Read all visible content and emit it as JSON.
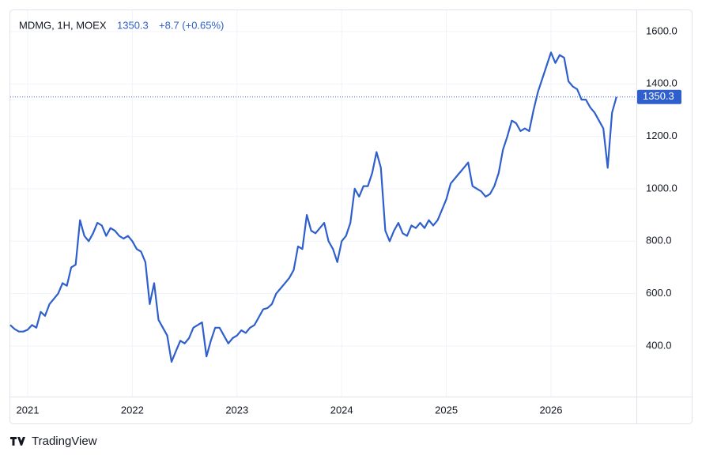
{
  "chart_data": {
    "type": "line",
    "title": "MDMG, 1H, MOEX",
    "quote": "1350.3",
    "change": "+8.7 (+0.65%)",
    "source": "TradingView",
    "categories": [
      null,
      null,
      null,
      null,
      "2021",
      null,
      null,
      null,
      null,
      null,
      null,
      null,
      null,
      null,
      null,
      null,
      null,
      null,
      null,
      null,
      null,
      null,
      null,
      null,
      null,
      null,
      null,
      null,
      "2022",
      null,
      null,
      null,
      null,
      null,
      null,
      null,
      null,
      null,
      null,
      null,
      null,
      null,
      null,
      null,
      null,
      null,
      null,
      null,
      null,
      null,
      null,
      null,
      "2023",
      null,
      null,
      null,
      null,
      null,
      null,
      null,
      null,
      null,
      null,
      null,
      null,
      null,
      null,
      null,
      null,
      null,
      null,
      null,
      null,
      null,
      null,
      null,
      "2024",
      null,
      null,
      null,
      null,
      null,
      null,
      null,
      null,
      null,
      null,
      null,
      null,
      null,
      null,
      null,
      null,
      null,
      null,
      null,
      null,
      null,
      null,
      null,
      "2025",
      null,
      null,
      null,
      null,
      null,
      null,
      null,
      null,
      null,
      null,
      null,
      null,
      null,
      null,
      null,
      null,
      null,
      null,
      null,
      null,
      null,
      null,
      null,
      "2026",
      null,
      null,
      null,
      null,
      null,
      null,
      null,
      null,
      null,
      null,
      null,
      null,
      null,
      null,
      null
    ],
    "series": [
      {
        "name": "MDMG",
        "color": "#2f5fcc",
        "values": [
          480,
          465,
          455,
          455,
          462,
          480,
          470,
          530,
          515,
          560,
          580,
          600,
          640,
          630,
          700,
          710,
          880,
          820,
          800,
          830,
          870,
          860,
          820,
          850,
          840,
          820,
          810,
          820,
          800,
          770,
          760,
          720,
          560,
          640,
          500,
          470,
          440,
          340,
          380,
          420,
          410,
          430,
          470,
          480,
          490,
          360,
          420,
          470,
          470,
          440,
          410,
          430,
          440,
          460,
          450,
          470,
          480,
          510,
          540,
          545,
          560,
          600,
          620,
          640,
          660,
          690,
          780,
          770,
          900,
          840,
          830,
          850,
          870,
          800,
          770,
          720,
          800,
          820,
          870,
          1000,
          970,
          1010,
          1010,
          1060,
          1140,
          1080,
          840,
          800,
          840,
          870,
          830,
          820,
          860,
          850,
          870,
          850,
          880,
          860,
          880,
          920,
          960,
          1020,
          1040,
          1060,
          1080,
          1100,
          1010,
          1000,
          990,
          970,
          980,
          1010,
          1060,
          1150,
          1200,
          1260,
          1250,
          1220,
          1230,
          1220,
          1300,
          1370,
          1420,
          1470,
          1520,
          1480,
          1510,
          1500,
          1410,
          1390,
          1380,
          1340,
          1340,
          1310,
          1290,
          1260,
          1230,
          1080,
          1290,
          1350.3
        ]
      }
    ],
    "ylim": [
      207,
      1678
    ],
    "yticks": [
      {
        "value": 400,
        "label": "400.0"
      },
      {
        "value": 600,
        "label": "600.0"
      },
      {
        "value": 800,
        "label": "800.0"
      },
      {
        "value": 1000,
        "label": "1000.0"
      },
      {
        "value": 1200,
        "label": "1200.0"
      },
      {
        "value": 1400,
        "label": "1400.0"
      },
      {
        "value": 1600,
        "label": "1600.0"
      }
    ],
    "grid": true
  }
}
